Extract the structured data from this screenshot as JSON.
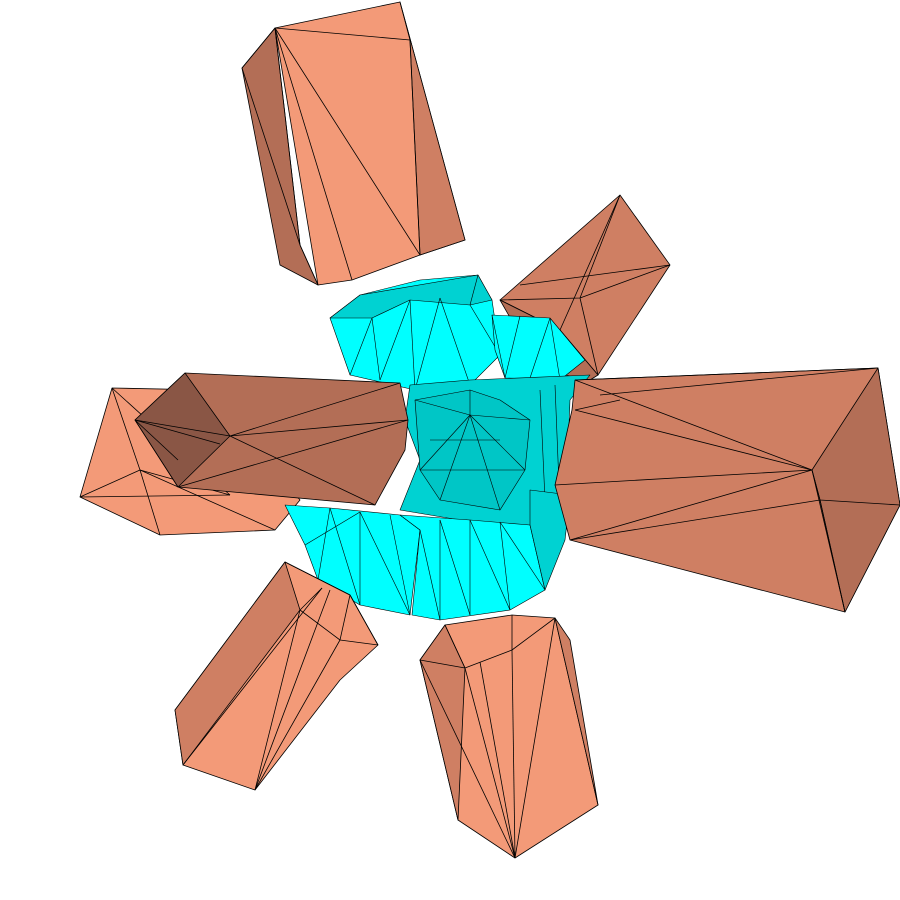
{
  "scene": {
    "background": "#ffffff",
    "palette": {
      "outline": "#000000",
      "salmon_light": "#f39a78",
      "salmon_mid": "#cf7f63",
      "salmon_dark": "#b36e56",
      "salmon_shadow": "#8a5645",
      "cyan_light": "#00ffff",
      "cyan_mid": "#00d2d2",
      "cyan_dark": "#00b3b3"
    },
    "objects": [
      {
        "name": "central-cyan-core",
        "color_role": "cyan"
      },
      {
        "name": "top-prism",
        "color_role": "salmon"
      },
      {
        "name": "upper-right-prism",
        "color_role": "salmon"
      },
      {
        "name": "right-long-prism",
        "color_role": "salmon"
      },
      {
        "name": "left-prism-front",
        "color_role": "salmon"
      },
      {
        "name": "left-prism-back",
        "color_role": "salmon"
      },
      {
        "name": "lower-left-prism",
        "color_role": "salmon"
      },
      {
        "name": "lower-center-prism",
        "color_role": "salmon"
      }
    ]
  }
}
